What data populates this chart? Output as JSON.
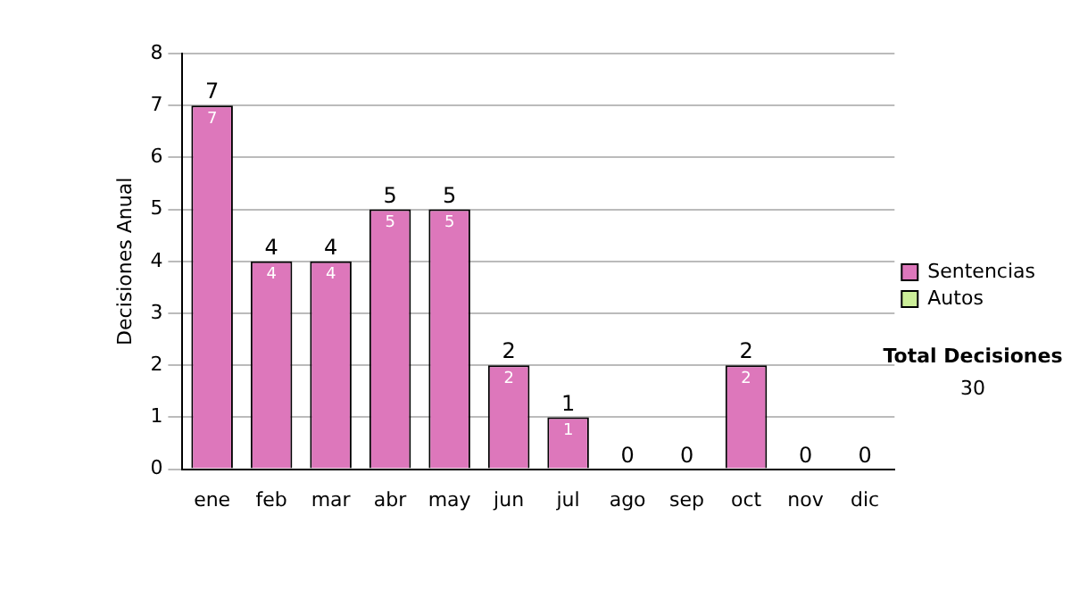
{
  "chart_data": {
    "type": "bar",
    "ylabel": "Decisiones Anual",
    "categories": [
      "ene",
      "feb",
      "mar",
      "abr",
      "may",
      "jun",
      "jul",
      "ago",
      "sep",
      "oct",
      "nov",
      "dic"
    ],
    "stacked": true,
    "series": [
      {
        "name": "Sentencias",
        "color": "#dd77bb",
        "values": [
          7,
          4,
          4,
          5,
          5,
          2,
          1,
          0,
          0,
          2,
          0,
          0
        ],
        "value_labels": [
          "7",
          "4",
          "4",
          "5",
          "5",
          "2",
          "1",
          null,
          null,
          "2",
          null,
          null
        ]
      },
      {
        "name": "Autos",
        "color": "#ccee99",
        "values": [
          0,
          0,
          0,
          0,
          0,
          0,
          0,
          0,
          0,
          0,
          0,
          0
        ]
      }
    ],
    "totals": [
      "7",
      "4",
      "4",
      "5",
      "5",
      "2",
      "1",
      "0",
      "0",
      "2",
      "0",
      "0"
    ],
    "ylim": [
      0,
      8
    ],
    "yticks": [
      0,
      1,
      2,
      3,
      4,
      5,
      6,
      7,
      8
    ],
    "grid": "y",
    "legend": "right",
    "annotations": [
      "Total Decisiones",
      "30"
    ]
  }
}
